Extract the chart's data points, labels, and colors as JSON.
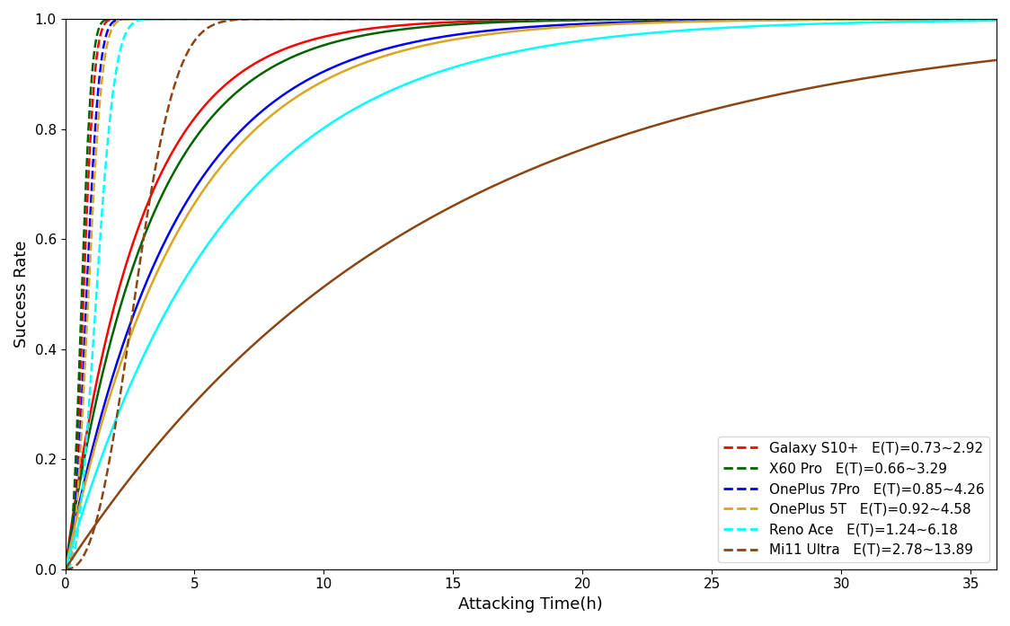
{
  "devices": [
    {
      "name": "Galaxy S10+",
      "label": "Galaxy S10+",
      "et_label": "E(T)=0.73~2.92",
      "mean_fast": 0.73,
      "mean_slow": 2.92,
      "color": "red"
    },
    {
      "name": "X60 Pro",
      "label": "X60 Pro",
      "et_label": "E(T)=0.66~3.29",
      "mean_fast": 0.66,
      "mean_slow": 3.29,
      "color": "#006400"
    },
    {
      "name": "OnePlus 7Pro",
      "label": "OnePlus 7Pro",
      "et_label": "E(T)=0.85~4.26",
      "mean_fast": 0.85,
      "mean_slow": 4.26,
      "color": "blue"
    },
    {
      "name": "OnePlus 5T",
      "label": "OnePlus 5T",
      "et_label": "E(T)=0.92~4.58",
      "mean_fast": 0.92,
      "mean_slow": 4.58,
      "color": "#DAA520"
    },
    {
      "name": "Reno Ace",
      "label": "Reno Ace",
      "et_label": "E(T)=1.24~6.18",
      "mean_fast": 1.24,
      "mean_slow": 6.18,
      "color": "cyan"
    },
    {
      "name": "Mi11 Ultra",
      "label": "Mi11 Ultra",
      "et_label": "E(T)=2.78~13.89",
      "mean_fast": 2.78,
      "mean_slow": 13.89,
      "color": "#8B4513"
    }
  ],
  "xlabel": "Attacking Time(h)",
  "ylabel": "Success Rate",
  "xlim": [
    0,
    36
  ],
  "ylim": [
    0.0,
    1.0
  ],
  "xticks": [
    0,
    5,
    10,
    15,
    20,
    25,
    30,
    35
  ],
  "yticks": [
    0.0,
    0.2,
    0.4,
    0.6,
    0.8,
    1.0
  ],
  "legend_loc": "lower right",
  "figsize": [
    11.24,
    6.97
  ],
  "dpi": 100,
  "weibull_k_fast": 2.5,
  "weibull_k_slow": 1.0
}
